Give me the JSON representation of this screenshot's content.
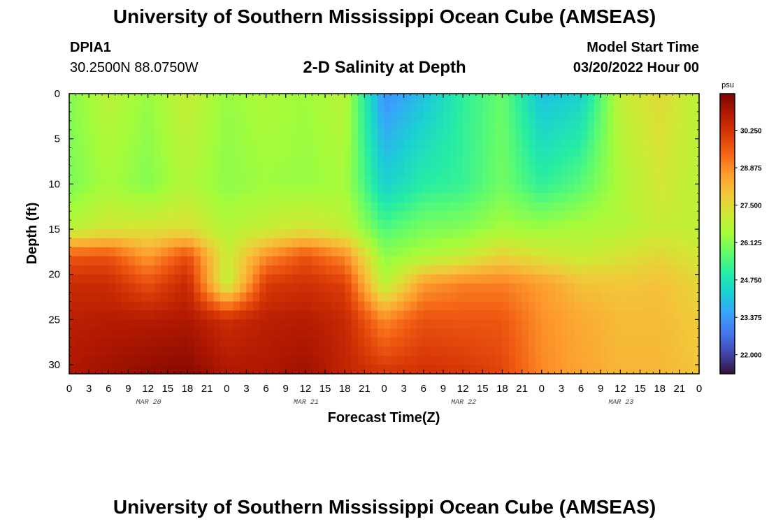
{
  "header": {
    "title": "University of Southern Mississippi Ocean Cube (AMSEAS)",
    "station": "DPIA1",
    "coords": "30.2500N  88.0750W",
    "subtitle": "2-D Salinity at Depth",
    "model_start_label": "Model Start Time",
    "model_start_date": "03/20/2022 Hour 00"
  },
  "footer": {
    "title": "University of Southern Mississippi Ocean Cube (AMSEAS)"
  },
  "chart_data": {
    "type": "heatmap",
    "title": "2-D Salinity at Depth",
    "xlabel": "Forecast Time(Z)",
    "ylabel": "Depth (ft)",
    "x_ticks": [
      "0",
      "3",
      "6",
      "9",
      "12",
      "15",
      "18",
      "21",
      "0",
      "3",
      "6",
      "9",
      "12",
      "15",
      "18",
      "21",
      "0",
      "3",
      "6",
      "9",
      "12",
      "15",
      "18",
      "21",
      "0",
      "3",
      "6",
      "9",
      "12",
      "15",
      "18",
      "21",
      "0"
    ],
    "date_labels": [
      {
        "label": "MAR 20",
        "hour": 12
      },
      {
        "label": "MAR 21",
        "hour": 36
      },
      {
        "label": "MAR 22",
        "hour": 60
      },
      {
        "label": "MAR 23",
        "hour": 84
      }
    ],
    "x_range_hours": [
      0,
      96
    ],
    "y_ticks": [
      0,
      5,
      10,
      15,
      20,
      25,
      30
    ],
    "y_range_ft": [
      0,
      31
    ],
    "colorbar": {
      "unit": "psu",
      "min": 21.3,
      "max": 31.6,
      "labels": [
        "30.250",
        "28.875",
        "27.500",
        "26.125",
        "24.750",
        "23.375",
        "22.000"
      ],
      "colors": [
        "#30123b",
        "#4145ab",
        "#4675ed",
        "#39a2fc",
        "#1bcfd4",
        "#24eca6",
        "#61fc6c",
        "#a4fc3b",
        "#d1e834",
        "#f3c63a",
        "#fe9b2d",
        "#f36315",
        "#d93806",
        "#b11901",
        "#7a0402"
      ]
    },
    "series_description": "Salinity (psu) as a function of forecast hour (x) and depth (y)",
    "time_hours": [
      0,
      6,
      12,
      18,
      24,
      30,
      36,
      42,
      48,
      54,
      60,
      66,
      72,
      78,
      84,
      90,
      96
    ],
    "depth_ft": [
      0,
      10,
      15,
      18,
      21,
      25,
      31
    ],
    "salinity": [
      [
        26.1,
        26.8,
        26.3,
        27.0,
        26.3,
        26.6,
        26.4,
        26.8,
        23.2,
        24.0,
        25.1,
        25.8,
        24.0,
        24.3,
        26.9,
        27.5,
        26.8
      ],
      [
        26.0,
        26.5,
        26.1,
        26.7,
        26.2,
        26.4,
        26.3,
        26.5,
        24.3,
        25.0,
        25.2,
        25.9,
        25.1,
        25.6,
        26.6,
        27.2,
        26.8
      ],
      [
        26.8,
        27.2,
        27.3,
        27.4,
        26.7,
        27.0,
        27.3,
        26.9,
        25.5,
        26.0,
        26.1,
        26.5,
        26.4,
        26.6,
        26.7,
        27.0,
        26.9
      ],
      [
        29.6,
        29.7,
        28.6,
        29.8,
        27.0,
        28.8,
        29.7,
        28.9,
        26.2,
        26.6,
        27.0,
        27.7,
        27.3,
        27.0,
        27.3,
        27.6,
        27.2
      ],
      [
        30.4,
        30.4,
        29.7,
        30.5,
        26.8,
        30.1,
        30.3,
        30.0,
        26.7,
        28.6,
        29.0,
        29.0,
        28.6,
        28.0,
        27.9,
        28.0,
        27.6
      ],
      [
        30.7,
        30.8,
        30.8,
        30.9,
        30.4,
        30.7,
        30.8,
        30.5,
        28.9,
        29.7,
        29.6,
        29.6,
        28.8,
        28.4,
        28.1,
        28.1,
        27.8
      ],
      [
        30.9,
        31.1,
        31.3,
        31.4,
        30.9,
        30.9,
        31.1,
        30.6,
        30.2,
        30.3,
        30.2,
        29.9,
        28.9,
        28.5,
        28.2,
        28.2,
        27.9
      ]
    ]
  }
}
